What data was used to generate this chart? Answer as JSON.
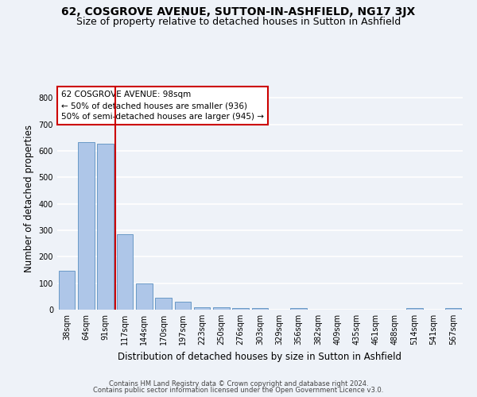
{
  "title": "62, COSGROVE AVENUE, SUTTON-IN-ASHFIELD, NG17 3JX",
  "subtitle": "Size of property relative to detached houses in Sutton in Ashfield",
  "xlabel": "Distribution of detached houses by size in Sutton in Ashfield",
  "ylabel": "Number of detached properties",
  "categories": [
    "38sqm",
    "64sqm",
    "91sqm",
    "117sqm",
    "144sqm",
    "170sqm",
    "197sqm",
    "223sqm",
    "250sqm",
    "276sqm",
    "303sqm",
    "329sqm",
    "356sqm",
    "382sqm",
    "409sqm",
    "435sqm",
    "461sqm",
    "488sqm",
    "514sqm",
    "541sqm",
    "567sqm"
  ],
  "values": [
    148,
    632,
    628,
    285,
    100,
    46,
    30,
    10,
    10,
    7,
    5,
    0,
    5,
    0,
    0,
    0,
    0,
    0,
    5,
    0,
    5
  ],
  "bar_color": "#aec6e8",
  "bar_edge_color": "#5a8fc0",
  "vline_x": 2.5,
  "vline_color": "#cc0000",
  "annotation_title": "62 COSGROVE AVENUE: 98sqm",
  "annotation_line1": "← 50% of detached houses are smaller (936)",
  "annotation_line2": "50% of semi-detached houses are larger (945) →",
  "annotation_box_color": "#cc0000",
  "annotation_text_color": "#000000",
  "ylim": [
    0,
    840
  ],
  "yticks": [
    0,
    100,
    200,
    300,
    400,
    500,
    600,
    700,
    800
  ],
  "footer_line1": "Contains HM Land Registry data © Crown copyright and database right 2024.",
  "footer_line2": "Contains public sector information licensed under the Open Government Licence v3.0.",
  "background_color": "#eef2f8",
  "grid_color": "#ffffff",
  "title_fontsize": 10,
  "subtitle_fontsize": 9,
  "axis_label_fontsize": 8.5,
  "tick_fontsize": 7,
  "annotation_fontsize": 7.5,
  "footer_fontsize": 6
}
